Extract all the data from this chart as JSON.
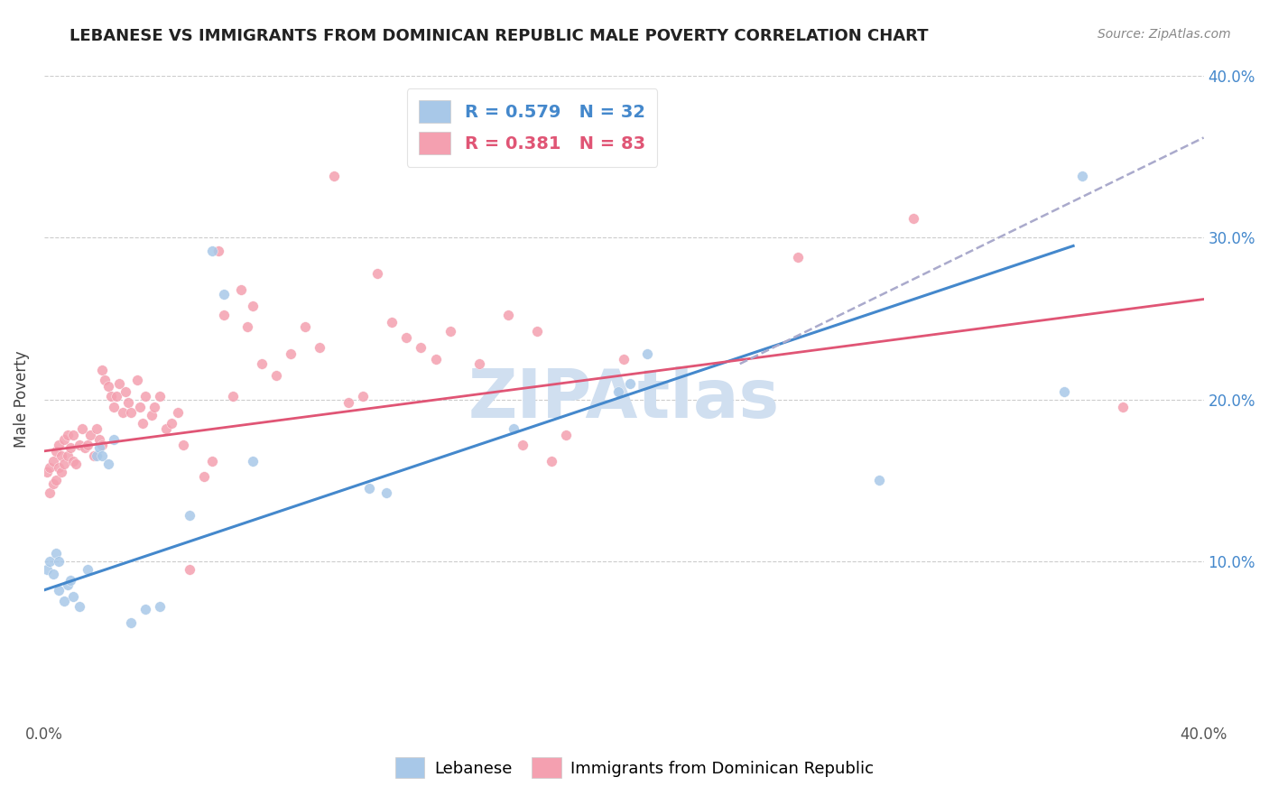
{
  "title": "LEBANESE VS IMMIGRANTS FROM DOMINICAN REPUBLIC MALE POVERTY CORRELATION CHART",
  "source": "Source: ZipAtlas.com",
  "ylabel": "Male Poverty",
  "xlim": [
    0.0,
    0.4
  ],
  "ylim": [
    0.0,
    0.4
  ],
  "xticks": [
    0.0,
    0.1,
    0.2,
    0.3,
    0.4
  ],
  "yticks": [
    0.1,
    0.2,
    0.3,
    0.4
  ],
  "xticklabels": [
    "0.0%",
    "",
    "",
    "",
    "40.0%"
  ],
  "yticklabels": [
    "10.0%",
    "20.0%",
    "30.0%",
    "40.0%"
  ],
  "right_yticklabels": [
    "10.0%",
    "20.0%",
    "30.0%",
    "40.0%"
  ],
  "blue_color": "#a8c8e8",
  "pink_color": "#f4a0b0",
  "blue_line_color": "#4488cc",
  "pink_line_color": "#e05575",
  "dashed_line_color": "#aaaacc",
  "watermark": "ZIPAtlas",
  "watermark_color": "#d0dff0",
  "blue_scatter": [
    [
      0.001,
      0.095
    ],
    [
      0.002,
      0.1
    ],
    [
      0.003,
      0.092
    ],
    [
      0.004,
      0.105
    ],
    [
      0.005,
      0.1
    ],
    [
      0.005,
      0.082
    ],
    [
      0.007,
      0.075
    ],
    [
      0.008,
      0.085
    ],
    [
      0.009,
      0.088
    ],
    [
      0.01,
      0.078
    ],
    [
      0.012,
      0.072
    ],
    [
      0.015,
      0.095
    ],
    [
      0.018,
      0.165
    ],
    [
      0.019,
      0.17
    ],
    [
      0.02,
      0.165
    ],
    [
      0.022,
      0.16
    ],
    [
      0.024,
      0.175
    ],
    [
      0.03,
      0.062
    ],
    [
      0.035,
      0.07
    ],
    [
      0.04,
      0.072
    ],
    [
      0.05,
      0.128
    ],
    [
      0.058,
      0.292
    ],
    [
      0.062,
      0.265
    ],
    [
      0.072,
      0.162
    ],
    [
      0.112,
      0.145
    ],
    [
      0.118,
      0.142
    ],
    [
      0.162,
      0.182
    ],
    [
      0.198,
      0.205
    ],
    [
      0.202,
      0.21
    ],
    [
      0.208,
      0.228
    ],
    [
      0.288,
      0.15
    ],
    [
      0.352,
      0.205
    ],
    [
      0.358,
      0.338
    ]
  ],
  "pink_scatter": [
    [
      0.001,
      0.155
    ],
    [
      0.002,
      0.158
    ],
    [
      0.002,
      0.142
    ],
    [
      0.003,
      0.148
    ],
    [
      0.003,
      0.162
    ],
    [
      0.004,
      0.168
    ],
    [
      0.004,
      0.15
    ],
    [
      0.005,
      0.158
    ],
    [
      0.005,
      0.172
    ],
    [
      0.006,
      0.165
    ],
    [
      0.006,
      0.155
    ],
    [
      0.007,
      0.175
    ],
    [
      0.007,
      0.16
    ],
    [
      0.008,
      0.165
    ],
    [
      0.008,
      0.178
    ],
    [
      0.009,
      0.17
    ],
    [
      0.01,
      0.178
    ],
    [
      0.01,
      0.162
    ],
    [
      0.011,
      0.16
    ],
    [
      0.012,
      0.172
    ],
    [
      0.013,
      0.182
    ],
    [
      0.014,
      0.17
    ],
    [
      0.015,
      0.172
    ],
    [
      0.016,
      0.178
    ],
    [
      0.017,
      0.165
    ],
    [
      0.018,
      0.182
    ],
    [
      0.019,
      0.175
    ],
    [
      0.02,
      0.172
    ],
    [
      0.02,
      0.218
    ],
    [
      0.021,
      0.212
    ],
    [
      0.022,
      0.208
    ],
    [
      0.023,
      0.202
    ],
    [
      0.024,
      0.195
    ],
    [
      0.025,
      0.202
    ],
    [
      0.026,
      0.21
    ],
    [
      0.027,
      0.192
    ],
    [
      0.028,
      0.205
    ],
    [
      0.029,
      0.198
    ],
    [
      0.03,
      0.192
    ],
    [
      0.032,
      0.212
    ],
    [
      0.033,
      0.195
    ],
    [
      0.034,
      0.185
    ],
    [
      0.035,
      0.202
    ],
    [
      0.037,
      0.19
    ],
    [
      0.038,
      0.195
    ],
    [
      0.04,
      0.202
    ],
    [
      0.042,
      0.182
    ],
    [
      0.044,
      0.185
    ],
    [
      0.046,
      0.192
    ],
    [
      0.048,
      0.172
    ],
    [
      0.05,
      0.095
    ],
    [
      0.055,
      0.152
    ],
    [
      0.058,
      0.162
    ],
    [
      0.06,
      0.292
    ],
    [
      0.062,
      0.252
    ],
    [
      0.065,
      0.202
    ],
    [
      0.068,
      0.268
    ],
    [
      0.07,
      0.245
    ],
    [
      0.072,
      0.258
    ],
    [
      0.075,
      0.222
    ],
    [
      0.08,
      0.215
    ],
    [
      0.085,
      0.228
    ],
    [
      0.09,
      0.245
    ],
    [
      0.095,
      0.232
    ],
    [
      0.1,
      0.338
    ],
    [
      0.105,
      0.198
    ],
    [
      0.11,
      0.202
    ],
    [
      0.115,
      0.278
    ],
    [
      0.12,
      0.248
    ],
    [
      0.125,
      0.238
    ],
    [
      0.13,
      0.232
    ],
    [
      0.135,
      0.225
    ],
    [
      0.14,
      0.242
    ],
    [
      0.15,
      0.222
    ],
    [
      0.16,
      0.252
    ],
    [
      0.165,
      0.172
    ],
    [
      0.17,
      0.242
    ],
    [
      0.175,
      0.162
    ],
    [
      0.18,
      0.178
    ],
    [
      0.2,
      0.225
    ],
    [
      0.26,
      0.288
    ],
    [
      0.3,
      0.312
    ],
    [
      0.372,
      0.195
    ]
  ],
  "blue_line": {
    "x0": 0.0,
    "y0": 0.082,
    "x1": 0.355,
    "y1": 0.295
  },
  "pink_line": {
    "x0": 0.0,
    "y0": 0.168,
    "x1": 0.4,
    "y1": 0.262
  },
  "dashed_line": {
    "x0": 0.24,
    "y0": 0.222,
    "x1": 0.4,
    "y1": 0.362
  }
}
